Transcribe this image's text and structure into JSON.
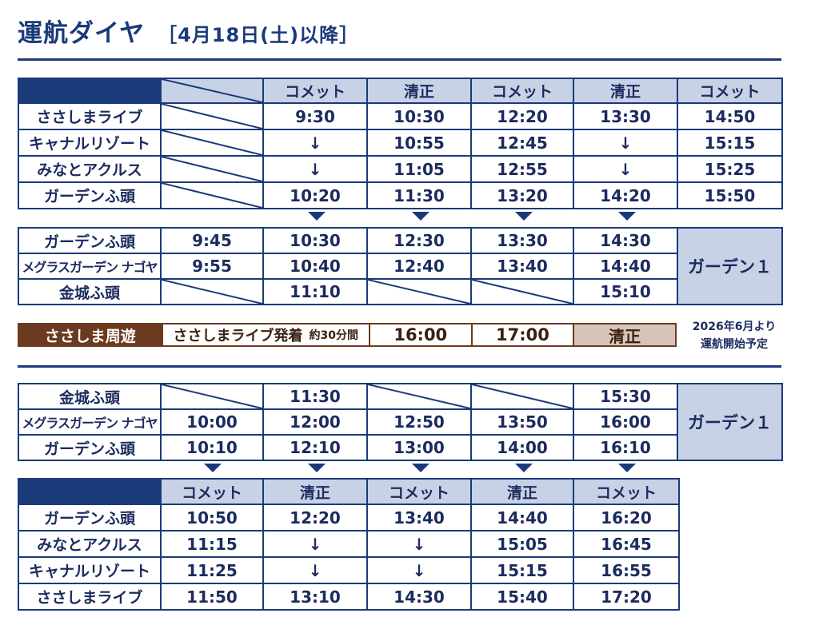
{
  "header": {
    "title": "運航ダイヤ",
    "subtitle": "［4月18日(土)以降］"
  },
  "table1": {
    "headers": [
      "コメット",
      "清正",
      "コメット",
      "清正",
      "コメット"
    ],
    "rows": [
      {
        "station": "ささしまライブ",
        "times": [
          "9:30",
          "10:30",
          "12:20",
          "13:30",
          "14:50"
        ]
      },
      {
        "station": "キャナルリゾート",
        "times": [
          "↓",
          "10:55",
          "12:45",
          "↓",
          "15:15"
        ]
      },
      {
        "station": "みなとアクルス",
        "times": [
          "↓",
          "11:05",
          "12:55",
          "↓",
          "15:25"
        ]
      },
      {
        "station": "ガーデンふ頭",
        "times": [
          "10:20",
          "11:30",
          "13:20",
          "14:20",
          "15:50"
        ]
      }
    ]
  },
  "table2": {
    "rows": [
      {
        "station": "ガーデンふ頭",
        "times": [
          "9:45",
          "10:30",
          "12:30",
          "13:30",
          "14:30"
        ]
      },
      {
        "station": "メグラスガーデン ナゴヤ",
        "times": [
          "9:55",
          "10:40",
          "12:40",
          "13:40",
          "14:40"
        ]
      },
      {
        "station": "金城ふ頭",
        "times": [
          "",
          "11:10",
          "",
          "",
          "15:10"
        ]
      }
    ],
    "garden_label": "ガーデン１"
  },
  "loop": {
    "name": "ささしま周遊",
    "desc": "ささしまライブ発着",
    "duration": "約30分間",
    "times": [
      "16:00",
      "17:00"
    ],
    "seisho": "清正",
    "note_line1": "2026年6月より",
    "note_line2": "運航開始予定"
  },
  "table3": {
    "rows": [
      {
        "station": "金城ふ頭",
        "times": [
          "",
          "11:30",
          "",
          "",
          "15:30"
        ]
      },
      {
        "station": "メグラスガーデン ナゴヤ",
        "times": [
          "10:00",
          "12:00",
          "12:50",
          "13:50",
          "16:00"
        ]
      },
      {
        "station": "ガーデンふ頭",
        "times": [
          "10:10",
          "12:10",
          "13:00",
          "14:00",
          "16:10"
        ]
      }
    ],
    "garden_label": "ガーデン１"
  },
  "table4": {
    "headers": [
      "コメット",
      "清正",
      "コメット",
      "清正",
      "コメット"
    ],
    "rows": [
      {
        "station": "ガーデンふ頭",
        "times": [
          "10:50",
          "12:20",
          "13:40",
          "14:40",
          "16:20"
        ]
      },
      {
        "station": "みなとアクルス",
        "times": [
          "11:15",
          "↓",
          "↓",
          "15:05",
          "16:45"
        ]
      },
      {
        "station": "キャナルリゾート",
        "times": [
          "11:25",
          "↓",
          "↓",
          "15:15",
          "16:55"
        ]
      },
      {
        "station": "ささしまライブ",
        "times": [
          "11:50",
          "13:10",
          "14:30",
          "15:40",
          "17:20"
        ]
      }
    ]
  },
  "colors": {
    "navy": "#1b3a7a",
    "header_blue": "#c8d2e6",
    "loop_brown": "#6b3a1f",
    "seisho_beige": "#d7c4b8"
  }
}
